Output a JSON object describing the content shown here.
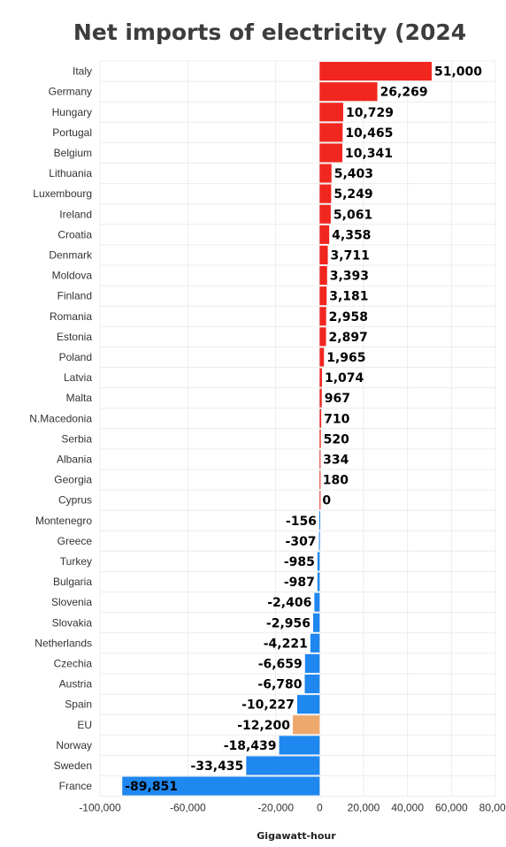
{
  "chart_data": {
    "type": "bar",
    "orientation": "horizontal",
    "title": "Net imports of electricity (2024",
    "xlabel": "Gigawatt-hour",
    "ylabel": "",
    "xlim": [
      -100000,
      80000
    ],
    "xticks": [
      -100000,
      -60000,
      -20000,
      0,
      20000,
      40000,
      60000,
      80000
    ],
    "xtick_labels": [
      "-100,000",
      "-60,000",
      "-20,000",
      "0",
      "20,000",
      "40,000",
      "60,000",
      "80,000"
    ],
    "grid": true,
    "colors": {
      "positive": "#f1261f",
      "negative": "#1f87f0",
      "highlight": "#efa86b"
    },
    "highlight_category": "EU",
    "categories": [
      "Italy",
      "Germany",
      "Hungary",
      "Portugal",
      "Belgium",
      "Lithuania",
      "Luxembourg",
      "Ireland",
      "Croatia",
      "Denmark",
      "Moldova",
      "Finland",
      "Romania",
      "Estonia",
      "Poland",
      "Latvia",
      "Malta",
      "N.Macedonia",
      "Serbia",
      "Albania",
      "Georgia",
      "Cyprus",
      "Montenegro",
      "Greece",
      "Turkey",
      "Bulgaria",
      "Slovenia",
      "Slovakia",
      "Netherlands",
      "Czechia",
      "Austria",
      "Spain",
      "EU",
      "Norway",
      "Sweden",
      "France"
    ],
    "values": [
      51000,
      26269,
      10729,
      10465,
      10341,
      5403,
      5249,
      5061,
      4358,
      3711,
      3393,
      3181,
      2958,
      2897,
      1965,
      1074,
      967,
      710,
      520,
      334,
      180,
      0,
      -156,
      -307,
      -985,
      -987,
      -2406,
      -2956,
      -4221,
      -6659,
      -6780,
      -10227,
      -12200,
      -18439,
      -33435,
      -89851
    ],
    "value_labels": [
      "51,000",
      "26,269",
      "10,729",
      "10,465",
      "10,341",
      "5,403",
      "5,249",
      "5,061",
      "4,358",
      "3,711",
      "3,393",
      "3,181",
      "2,958",
      "2,897",
      "1,965",
      "1,074",
      "967",
      "710",
      "520",
      "334",
      "180",
      "0",
      "-156",
      "-307",
      "-985",
      "-987",
      "-2,406",
      "-2,956",
      "-4,221",
      "-6,659",
      "-6,780",
      "-10,227",
      "-12,200",
      "-18,439",
      "-33,435",
      "-89,851"
    ]
  }
}
